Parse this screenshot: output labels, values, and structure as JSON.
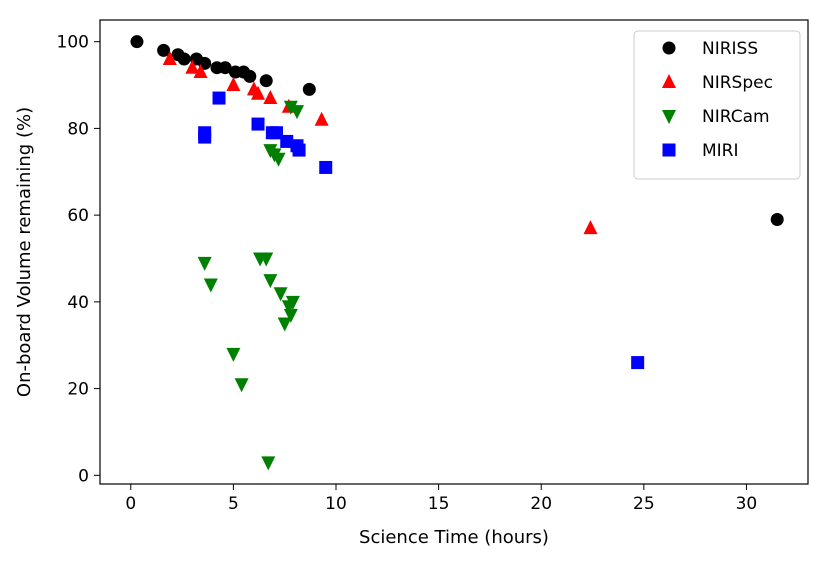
{
  "chart_data": {
    "type": "scatter",
    "title": "",
    "xlabel": "Science Time (hours)",
    "ylabel": "On-board Volume remaining (%)",
    "xlim": [
      -1.5,
      33
    ],
    "ylim": [
      -2,
      105
    ],
    "xticks": [
      0,
      5,
      10,
      15,
      20,
      25,
      30
    ],
    "yticks": [
      0,
      20,
      40,
      60,
      80,
      100
    ],
    "grid": false,
    "legend_position": "top-right",
    "series": [
      {
        "name": "NIRISS",
        "marker": "circle",
        "color": "#000000",
        "points": [
          [
            0.3,
            100
          ],
          [
            1.6,
            98
          ],
          [
            2.3,
            97
          ],
          [
            2.6,
            96
          ],
          [
            3.2,
            96
          ],
          [
            3.6,
            95
          ],
          [
            4.2,
            94
          ],
          [
            4.6,
            94
          ],
          [
            5.1,
            93
          ],
          [
            5.5,
            93
          ],
          [
            5.8,
            92
          ],
          [
            6.6,
            91
          ],
          [
            8.7,
            89
          ],
          [
            31.5,
            59
          ]
        ]
      },
      {
        "name": "NIRSpec",
        "marker": "triangle-up",
        "color": "#ff0000",
        "points": [
          [
            1.9,
            96
          ],
          [
            3.0,
            94
          ],
          [
            3.4,
            93
          ],
          [
            5.0,
            90
          ],
          [
            6.0,
            89
          ],
          [
            6.2,
            88
          ],
          [
            6.8,
            87
          ],
          [
            7.7,
            85
          ],
          [
            9.3,
            82
          ],
          [
            22.4,
            57
          ]
        ]
      },
      {
        "name": "NIRCam",
        "marker": "triangle-down",
        "color": "#008000",
        "points": [
          [
            7.8,
            85
          ],
          [
            8.1,
            84
          ],
          [
            6.8,
            75
          ],
          [
            7.0,
            74
          ],
          [
            7.2,
            73
          ],
          [
            3.6,
            49
          ],
          [
            3.9,
            44
          ],
          [
            6.3,
            50
          ],
          [
            6.6,
            50
          ],
          [
            6.8,
            45
          ],
          [
            7.3,
            42
          ],
          [
            7.7,
            39
          ],
          [
            7.9,
            40
          ],
          [
            7.8,
            37
          ],
          [
            7.5,
            35
          ],
          [
            5.0,
            28
          ],
          [
            5.4,
            21
          ],
          [
            6.7,
            3
          ]
        ]
      },
      {
        "name": "MIRI",
        "marker": "square",
        "color": "#0000ff",
        "points": [
          [
            4.3,
            87
          ],
          [
            3.6,
            79
          ],
          [
            3.6,
            78
          ],
          [
            6.2,
            81
          ],
          [
            6.9,
            79
          ],
          [
            7.1,
            79
          ],
          [
            7.6,
            77
          ],
          [
            8.1,
            76
          ],
          [
            8.2,
            75
          ],
          [
            9.5,
            71
          ],
          [
            24.7,
            26
          ]
        ]
      }
    ]
  }
}
